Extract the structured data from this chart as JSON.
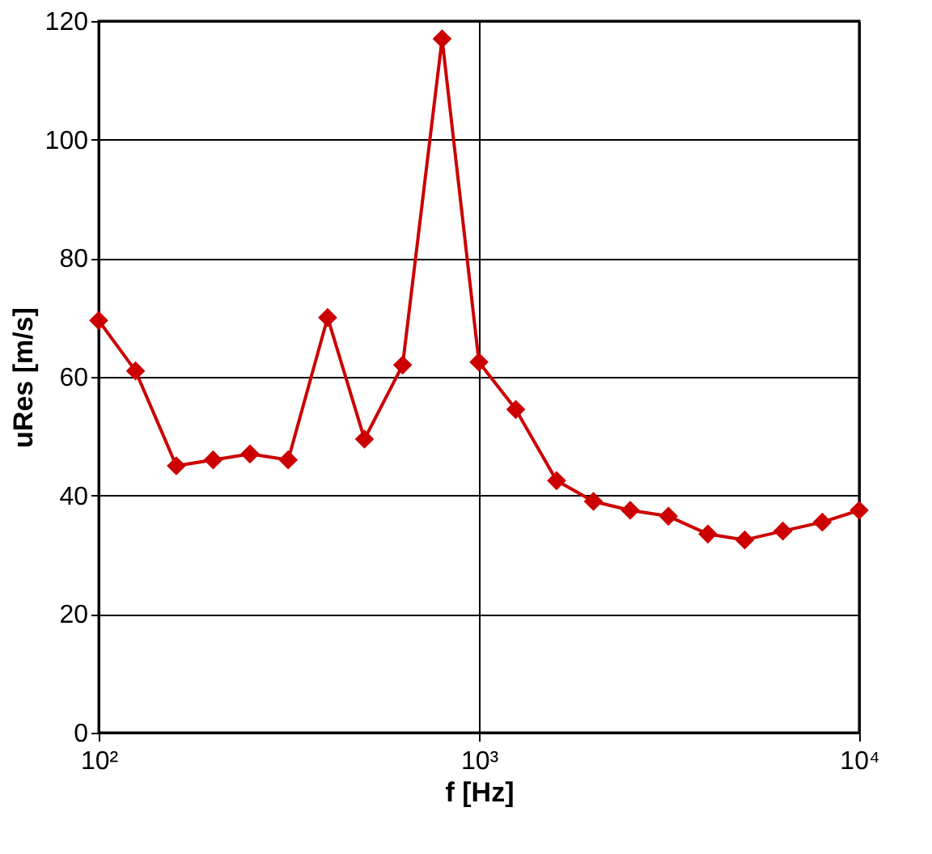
{
  "chart_data": {
    "type": "line",
    "xlabel": "f [Hz]",
    "ylabel": "uRes [m/s]",
    "x": [
      100,
      125,
      160,
      200,
      250,
      315,
      400,
      500,
      630,
      800,
      1000,
      1250,
      1600,
      2000,
      2500,
      3150,
      4000,
      5000,
      6300,
      8000,
      10000
    ],
    "series": [
      {
        "color": "#cc0000",
        "values": [
          69.5,
          61,
          45,
          46,
          47,
          46,
          70,
          49.5,
          62,
          117,
          62.5,
          54.5,
          42.5,
          39,
          37.5,
          36.5,
          33.5,
          32.5,
          34,
          35.5,
          37.5
        ]
      }
    ],
    "xlim": [
      100,
      10000
    ],
    "xticks": [
      {
        "value": 100,
        "label": "10²"
      },
      {
        "value": 1000,
        "label": "10³"
      },
      {
        "value": 10000,
        "label": "10⁴"
      }
    ],
    "ylim": [
      0,
      120
    ],
    "yticks": [
      0,
      20,
      40,
      60,
      80,
      100,
      120
    ],
    "log": "x",
    "grid": true,
    "marker": "diamond",
    "line_style": "solid"
  }
}
